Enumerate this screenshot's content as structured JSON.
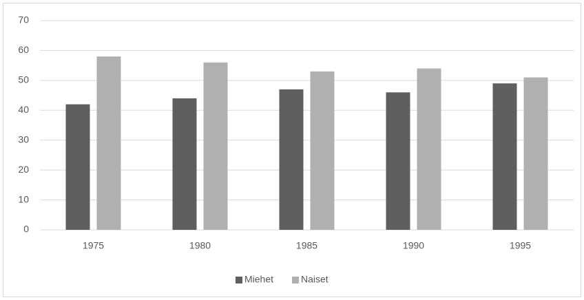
{
  "chart_data": {
    "type": "bar",
    "categories": [
      "1975",
      "1980",
      "1985",
      "1990",
      "1995"
    ],
    "series": [
      {
        "name": "Miehet",
        "color": "#5f5f5f",
        "values": [
          42,
          44,
          47,
          46,
          49
        ]
      },
      {
        "name": "Naiset",
        "color": "#b0b0b0",
        "values": [
          58,
          56,
          53,
          54,
          51
        ]
      }
    ],
    "ylim": [
      0,
      70
    ],
    "yticks": [
      0,
      10,
      20,
      30,
      40,
      50,
      60,
      70
    ],
    "grid": true,
    "legend": "bottom"
  }
}
